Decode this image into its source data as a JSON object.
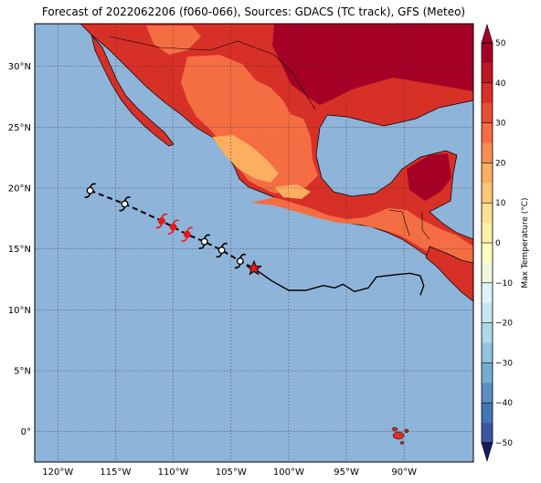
{
  "title": "Forecast of 2022062206 (f060-066), Sources: GDACS (TC track), GFS (Meteo)",
  "map": {
    "lon_range": [
      -122,
      -84
    ],
    "lat_range": [
      -2.5,
      33.5
    ],
    "ocean_color": "#8fb4d9",
    "grid_lons": [
      -120,
      -115,
      -110,
      -105,
      -100,
      -95,
      -90
    ],
    "grid_lats": [
      0,
      5,
      10,
      15,
      20,
      25,
      30
    ],
    "lon_labels": [
      "120°W",
      "115°W",
      "110°W",
      "105°W",
      "100°W",
      "95°W",
      "90°W"
    ],
    "lat_labels": [
      "0°",
      "5°N",
      "10°N",
      "15°N",
      "20°N",
      "25°N",
      "30°N"
    ]
  },
  "colorbar": {
    "label": "Max Temperature (°C)",
    "ticks": [
      "50",
      "40",
      "30",
      "20",
      "10",
      "0",
      "−10",
      "−20",
      "−30",
      "−40",
      "−50"
    ],
    "colors": [
      "#a50026",
      "#d73027",
      "#f46d43",
      "#fdae61",
      "#fee090",
      "#ffffbf",
      "#e0f3f8",
      "#abd9e9",
      "#74add1",
      "#4575b4",
      "#313695"
    ]
  },
  "track": {
    "current_position": {
      "lon": -103,
      "lat": 13.4
    },
    "forecast_points": [
      {
        "lon": -117.2,
        "lat": 19.8,
        "color": "white"
      },
      {
        "lon": -114.2,
        "lat": 18.7,
        "color": "white"
      },
      {
        "lon": -111.0,
        "lat": 17.3,
        "color": "red"
      },
      {
        "lon": -110.0,
        "lat": 16.8,
        "color": "red"
      },
      {
        "lon": -108.8,
        "lat": 16.2,
        "color": "red"
      },
      {
        "lon": -107.3,
        "lat": 15.6,
        "color": "white"
      },
      {
        "lon": -105.8,
        "lat": 14.9,
        "color": "white"
      },
      {
        "lon": -104.2,
        "lat": 14.0,
        "color": "white"
      }
    ],
    "past_track": [
      [
        -103,
        13.4
      ],
      [
        -101.5,
        12.4
      ],
      [
        -100,
        11.6
      ],
      [
        -98.5,
        11.6
      ],
      [
        -97,
        12.0
      ],
      [
        -96,
        11.8
      ],
      [
        -95.3,
        12.1
      ],
      [
        -94.3,
        11.5
      ],
      [
        -93.1,
        11.8
      ],
      [
        -92.4,
        12.7
      ],
      [
        -90.6,
        12.9
      ],
      [
        -89.5,
        13.0
      ],
      [
        -88.6,
        12.8
      ],
      [
        -88.3,
        12.0
      ],
      [
        -88.6,
        11.2
      ]
    ]
  }
}
